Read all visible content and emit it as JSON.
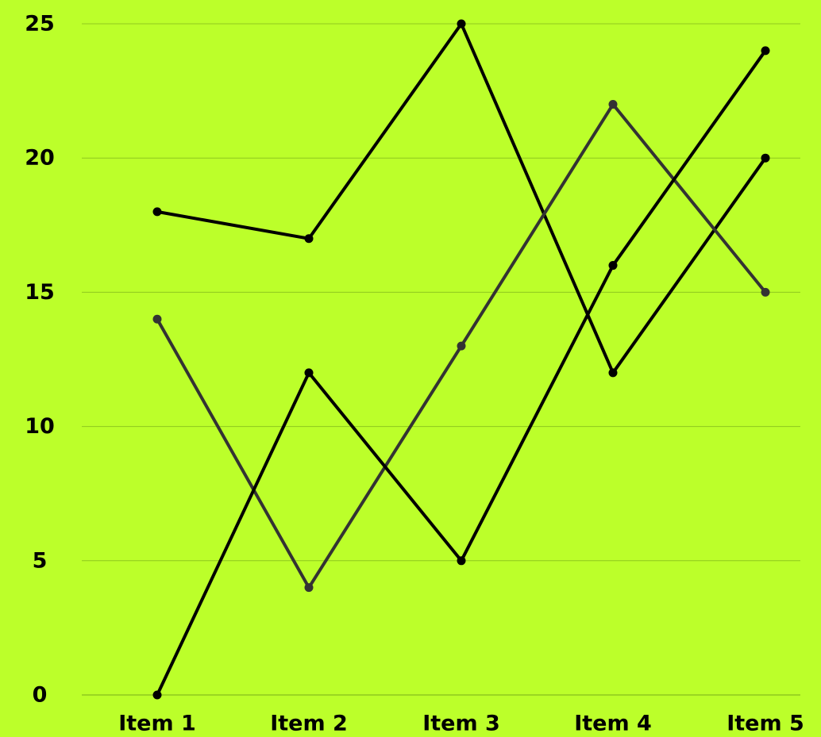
{
  "chart_data": {
    "type": "line",
    "categories": [
      "Item 1",
      "Item 2",
      "Item 3",
      "Item 4",
      "Item 5"
    ],
    "yticks": [
      "0",
      "5",
      "10",
      "15",
      "20",
      "25"
    ],
    "ylim": [
      0,
      25
    ],
    "grid": true,
    "title": "",
    "xlabel": "",
    "ylabel": "",
    "series": [
      {
        "values": [
          18,
          17,
          25,
          12,
          20
        ],
        "color": "#000000"
      },
      {
        "values": [
          14,
          4,
          13,
          22,
          15
        ],
        "color": "#333333"
      },
      {
        "values": [
          0,
          12,
          5,
          16,
          24
        ],
        "color": "#000000"
      }
    ]
  },
  "colors": {
    "background": "#bcff2a",
    "grid": "#8fc81e",
    "text": "#000000"
  }
}
